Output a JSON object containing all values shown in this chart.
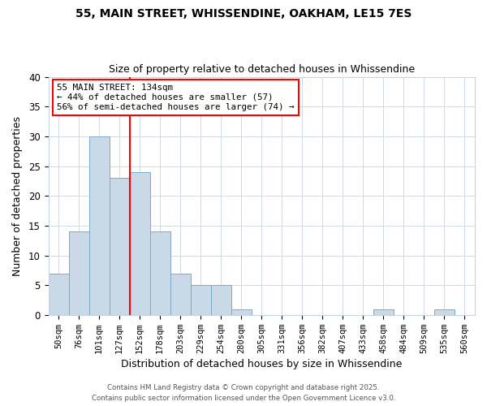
{
  "title_line1": "55, MAIN STREET, WHISSENDINE, OAKHAM, LE15 7ES",
  "title_line2": "Size of property relative to detached houses in Whissendine",
  "xlabel": "Distribution of detached houses by size in Whissendine",
  "ylabel": "Number of detached properties",
  "bins": [
    "50sqm",
    "76sqm",
    "101sqm",
    "127sqm",
    "152sqm",
    "178sqm",
    "203sqm",
    "229sqm",
    "254sqm",
    "280sqm",
    "305sqm",
    "331sqm",
    "356sqm",
    "382sqm",
    "407sqm",
    "433sqm",
    "458sqm",
    "484sqm",
    "509sqm",
    "535sqm",
    "560sqm"
  ],
  "values": [
    7,
    14,
    30,
    23,
    24,
    14,
    7,
    5,
    5,
    1,
    0,
    0,
    0,
    0,
    0,
    0,
    1,
    0,
    0,
    1,
    0
  ],
  "bar_color": "#c9d9e8",
  "bar_edge_color": "#7aaac8",
  "red_line_x": 3,
  "annotation_text": "55 MAIN STREET: 134sqm\n← 44% of detached houses are smaller (57)\n56% of semi-detached houses are larger (74) →",
  "ylim": [
    0,
    40
  ],
  "yticks": [
    0,
    5,
    10,
    15,
    20,
    25,
    30,
    35,
    40
  ],
  "footer_line1": "Contains HM Land Registry data © Crown copyright and database right 2025.",
  "footer_line2": "Contains public sector information licensed under the Open Government Licence v3.0.",
  "grid_color": "#c8d4e0"
}
